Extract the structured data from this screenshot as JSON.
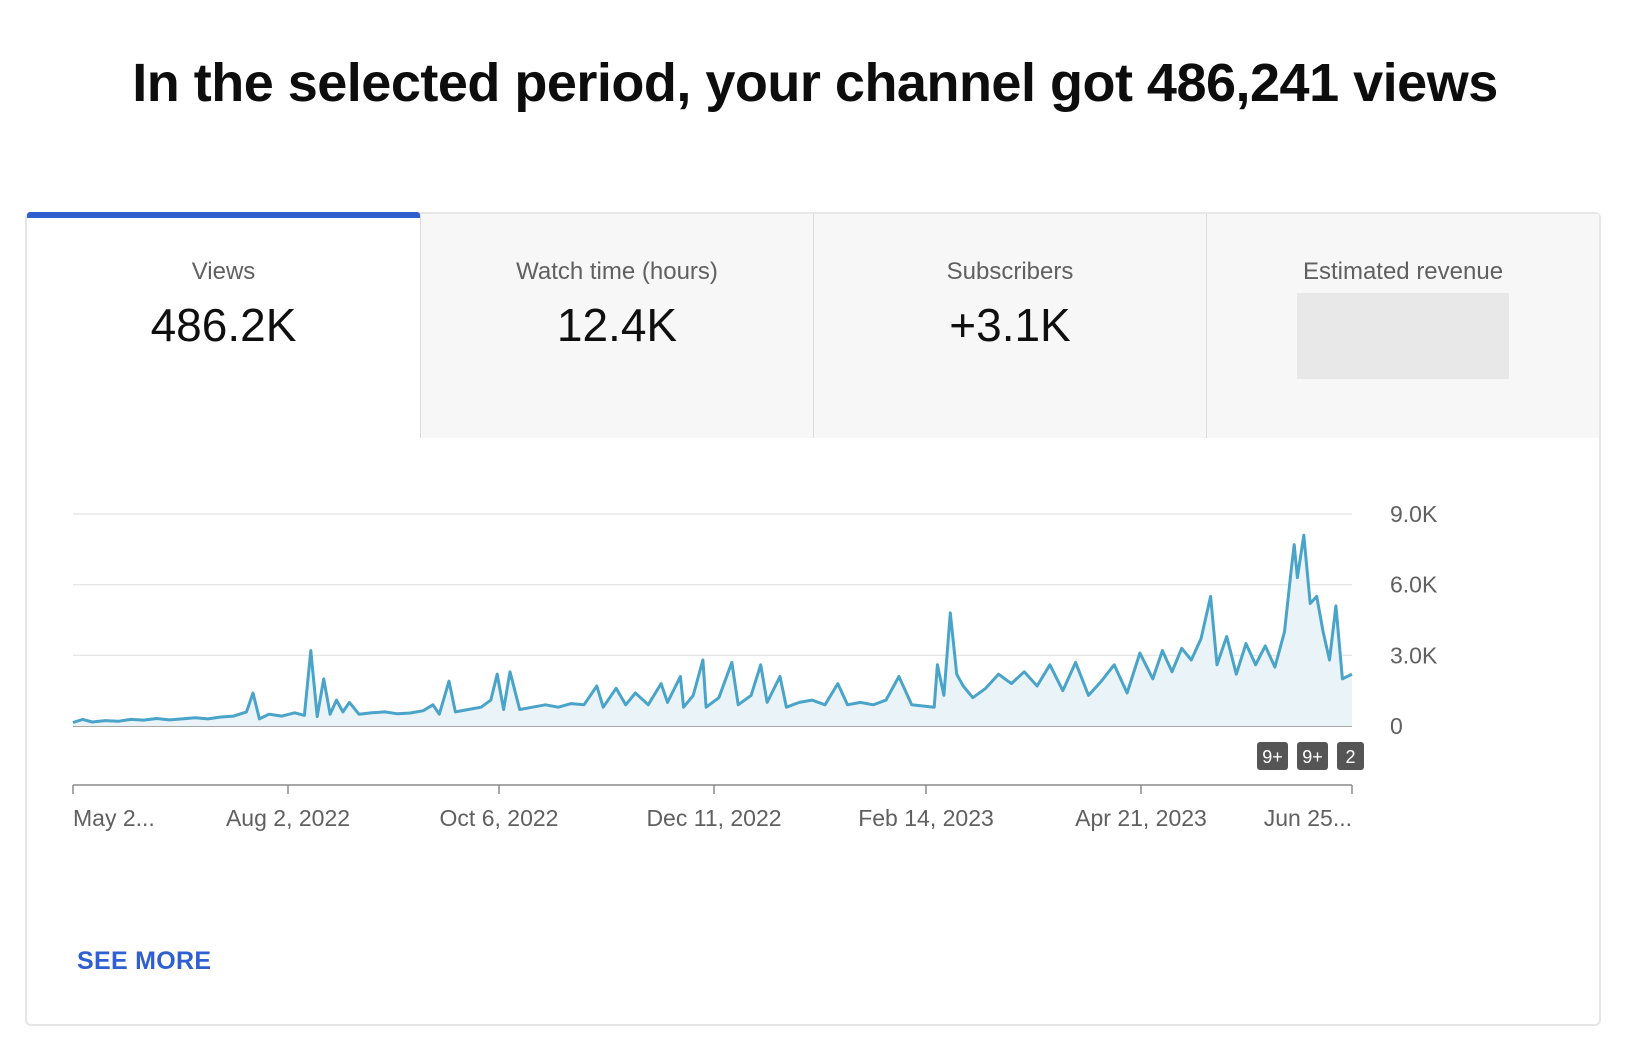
{
  "headline": "In the selected period, your channel got 486,241 views",
  "tabs": [
    {
      "label": "Views",
      "value": "486.2K",
      "active": true
    },
    {
      "label": "Watch time (hours)",
      "value": "12.4K"
    },
    {
      "label": "Subscribers",
      "value": "+3.1K"
    },
    {
      "label": "Estimated revenue",
      "value": ""
    }
  ],
  "see_more": "SEE MORE",
  "colors": {
    "accent": "#2f5fd0",
    "line": "#4aa3c8",
    "area": "#eaf4f8",
    "badge": "#555555"
  },
  "chart_data": {
    "type": "line",
    "title": "",
    "xlabel": "",
    "ylabel": "",
    "x_range": [
      "2022-05-29",
      "2023-07-01"
    ],
    "ylim": [
      0,
      9000
    ],
    "y_ticks": [
      0,
      3000,
      6000,
      9000
    ],
    "y_tick_labels": [
      "0",
      "3.0K",
      "6.0K",
      "9.0K"
    ],
    "x_tick_labels": [
      "May 2...",
      "Aug 2, 2022",
      "Oct 6, 2022",
      "Dec 11, 2022",
      "Feb 14, 2023",
      "Apr 21, 2023",
      "Jun 25..."
    ],
    "grid": true,
    "series": [
      {
        "name": "Views",
        "points": [
          [
            "2022-05-29",
            150
          ],
          [
            "2022-06-01",
            280
          ],
          [
            "2022-06-04",
            170
          ],
          [
            "2022-06-08",
            230
          ],
          [
            "2022-06-12",
            200
          ],
          [
            "2022-06-16",
            280
          ],
          [
            "2022-06-20",
            250
          ],
          [
            "2022-06-24",
            320
          ],
          [
            "2022-06-28",
            260
          ],
          [
            "2022-07-02",
            300
          ],
          [
            "2022-07-06",
            350
          ],
          [
            "2022-07-10",
            300
          ],
          [
            "2022-07-14",
            380
          ],
          [
            "2022-07-18",
            420
          ],
          [
            "2022-07-22",
            600
          ],
          [
            "2022-07-24",
            1400
          ],
          [
            "2022-07-26",
            300
          ],
          [
            "2022-07-29",
            500
          ],
          [
            "2022-08-02",
            420
          ],
          [
            "2022-08-06",
            560
          ],
          [
            "2022-08-09",
            450
          ],
          [
            "2022-08-11",
            3200
          ],
          [
            "2022-08-13",
            400
          ],
          [
            "2022-08-15",
            2000
          ],
          [
            "2022-08-17",
            500
          ],
          [
            "2022-08-19",
            1100
          ],
          [
            "2022-08-21",
            600
          ],
          [
            "2022-08-23",
            1000
          ],
          [
            "2022-08-26",
            500
          ],
          [
            "2022-08-30",
            560
          ],
          [
            "2022-09-03",
            600
          ],
          [
            "2022-09-07",
            520
          ],
          [
            "2022-09-11",
            550
          ],
          [
            "2022-09-15",
            650
          ],
          [
            "2022-09-18",
            900
          ],
          [
            "2022-09-20",
            500
          ],
          [
            "2022-09-23",
            1900
          ],
          [
            "2022-09-25",
            600
          ],
          [
            "2022-09-29",
            700
          ],
          [
            "2022-10-03",
            800
          ],
          [
            "2022-10-06",
            1100
          ],
          [
            "2022-10-08",
            2200
          ],
          [
            "2022-10-10",
            700
          ],
          [
            "2022-10-12",
            2300
          ],
          [
            "2022-10-15",
            700
          ],
          [
            "2022-10-19",
            800
          ],
          [
            "2022-10-23",
            900
          ],
          [
            "2022-10-27",
            800
          ],
          [
            "2022-10-31",
            950
          ],
          [
            "2022-11-04",
            900
          ],
          [
            "2022-11-08",
            1700
          ],
          [
            "2022-11-10",
            800
          ],
          [
            "2022-11-14",
            1600
          ],
          [
            "2022-11-17",
            900
          ],
          [
            "2022-11-20",
            1400
          ],
          [
            "2022-11-24",
            900
          ],
          [
            "2022-11-28",
            1800
          ],
          [
            "2022-11-30",
            1000
          ],
          [
            "2022-12-04",
            2100
          ],
          [
            "2022-12-05",
            800
          ],
          [
            "2022-12-08",
            1300
          ],
          [
            "2022-12-11",
            2800
          ],
          [
            "2022-12-12",
            800
          ],
          [
            "2022-12-16",
            1200
          ],
          [
            "2022-12-20",
            2700
          ],
          [
            "2022-12-22",
            900
          ],
          [
            "2022-12-26",
            1300
          ],
          [
            "2022-12-29",
            2600
          ],
          [
            "2022-12-31",
            1000
          ],
          [
            "2023-01-04",
            2100
          ],
          [
            "2023-01-06",
            800
          ],
          [
            "2023-01-10",
            1000
          ],
          [
            "2023-01-14",
            1100
          ],
          [
            "2023-01-18",
            900
          ],
          [
            "2023-01-22",
            1800
          ],
          [
            "2023-01-25",
            900
          ],
          [
            "2023-01-29",
            1000
          ],
          [
            "2023-02-02",
            900
          ],
          [
            "2023-02-06",
            1100
          ],
          [
            "2023-02-10",
            2100
          ],
          [
            "2023-02-14",
            900
          ],
          [
            "2023-02-21",
            800
          ],
          [
            "2023-02-22",
            2600
          ],
          [
            "2023-02-24",
            1300
          ],
          [
            "2023-02-26",
            4800
          ],
          [
            "2023-02-28",
            2200
          ],
          [
            "2023-03-02",
            1700
          ],
          [
            "2023-03-05",
            1200
          ],
          [
            "2023-03-09",
            1600
          ],
          [
            "2023-03-13",
            2200
          ],
          [
            "2023-03-17",
            1800
          ],
          [
            "2023-03-21",
            2300
          ],
          [
            "2023-03-25",
            1700
          ],
          [
            "2023-03-29",
            2600
          ],
          [
            "2023-04-02",
            1500
          ],
          [
            "2023-04-06",
            2700
          ],
          [
            "2023-04-10",
            1300
          ],
          [
            "2023-04-14",
            1900
          ],
          [
            "2023-04-18",
            2600
          ],
          [
            "2023-04-22",
            1400
          ],
          [
            "2023-04-26",
            3100
          ],
          [
            "2023-04-30",
            2000
          ],
          [
            "2023-05-03",
            3200
          ],
          [
            "2023-05-06",
            2300
          ],
          [
            "2023-05-09",
            3300
          ],
          [
            "2023-05-12",
            2800
          ],
          [
            "2023-05-15",
            3700
          ],
          [
            "2023-05-18",
            5500
          ],
          [
            "2023-05-20",
            2600
          ],
          [
            "2023-05-23",
            3800
          ],
          [
            "2023-05-26",
            2200
          ],
          [
            "2023-05-29",
            3500
          ],
          [
            "2023-06-01",
            2600
          ],
          [
            "2023-06-04",
            3400
          ],
          [
            "2023-06-07",
            2500
          ],
          [
            "2023-06-10",
            4000
          ],
          [
            "2023-06-12",
            6500
          ],
          [
            "2023-06-13",
            7700
          ],
          [
            "2023-06-14",
            6300
          ],
          [
            "2023-06-16",
            8100
          ],
          [
            "2023-06-18",
            5200
          ],
          [
            "2023-06-20",
            5500
          ],
          [
            "2023-06-22",
            4000
          ],
          [
            "2023-06-24",
            2800
          ],
          [
            "2023-06-26",
            5100
          ],
          [
            "2023-06-28",
            2000
          ],
          [
            "2023-07-01",
            2200
          ]
        ]
      }
    ],
    "annotations": [
      "9+",
      "9+",
      "2"
    ]
  }
}
